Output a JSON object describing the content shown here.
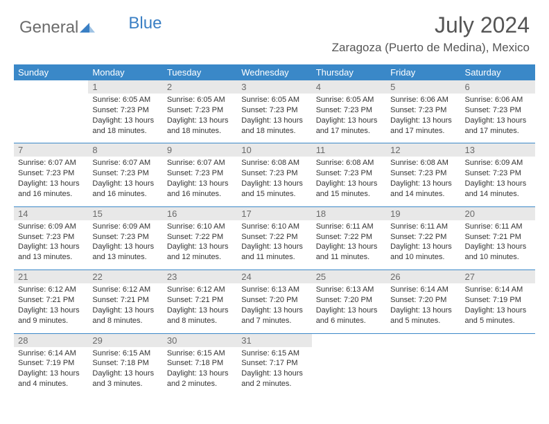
{
  "logo": {
    "text_part1": "General",
    "text_part2": "Blue"
  },
  "title": "July 2024",
  "location": "Zaragoza (Puerto de Medina), Mexico",
  "colors": {
    "header_bg": "#3a88c8",
    "header_text": "#ffffff",
    "daynum_bg": "#e8e8e8",
    "daynum_text": "#6a6a6a",
    "body_text": "#333333",
    "divider": "#3a88c8"
  },
  "day_headers": [
    "Sunday",
    "Monday",
    "Tuesday",
    "Wednesday",
    "Thursday",
    "Friday",
    "Saturday"
  ],
  "weeks": [
    {
      "nums": [
        "",
        "1",
        "2",
        "3",
        "4",
        "5",
        "6"
      ],
      "cells": [
        null,
        {
          "sunrise": "Sunrise: 6:05 AM",
          "sunset": "Sunset: 7:23 PM",
          "day1": "Daylight: 13 hours",
          "day2": "and 18 minutes."
        },
        {
          "sunrise": "Sunrise: 6:05 AM",
          "sunset": "Sunset: 7:23 PM",
          "day1": "Daylight: 13 hours",
          "day2": "and 18 minutes."
        },
        {
          "sunrise": "Sunrise: 6:05 AM",
          "sunset": "Sunset: 7:23 PM",
          "day1": "Daylight: 13 hours",
          "day2": "and 18 minutes."
        },
        {
          "sunrise": "Sunrise: 6:05 AM",
          "sunset": "Sunset: 7:23 PM",
          "day1": "Daylight: 13 hours",
          "day2": "and 17 minutes."
        },
        {
          "sunrise": "Sunrise: 6:06 AM",
          "sunset": "Sunset: 7:23 PM",
          "day1": "Daylight: 13 hours",
          "day2": "and 17 minutes."
        },
        {
          "sunrise": "Sunrise: 6:06 AM",
          "sunset": "Sunset: 7:23 PM",
          "day1": "Daylight: 13 hours",
          "day2": "and 17 minutes."
        }
      ]
    },
    {
      "nums": [
        "7",
        "8",
        "9",
        "10",
        "11",
        "12",
        "13"
      ],
      "cells": [
        {
          "sunrise": "Sunrise: 6:07 AM",
          "sunset": "Sunset: 7:23 PM",
          "day1": "Daylight: 13 hours",
          "day2": "and 16 minutes."
        },
        {
          "sunrise": "Sunrise: 6:07 AM",
          "sunset": "Sunset: 7:23 PM",
          "day1": "Daylight: 13 hours",
          "day2": "and 16 minutes."
        },
        {
          "sunrise": "Sunrise: 6:07 AM",
          "sunset": "Sunset: 7:23 PM",
          "day1": "Daylight: 13 hours",
          "day2": "and 16 minutes."
        },
        {
          "sunrise": "Sunrise: 6:08 AM",
          "sunset": "Sunset: 7:23 PM",
          "day1": "Daylight: 13 hours",
          "day2": "and 15 minutes."
        },
        {
          "sunrise": "Sunrise: 6:08 AM",
          "sunset": "Sunset: 7:23 PM",
          "day1": "Daylight: 13 hours",
          "day2": "and 15 minutes."
        },
        {
          "sunrise": "Sunrise: 6:08 AM",
          "sunset": "Sunset: 7:23 PM",
          "day1": "Daylight: 13 hours",
          "day2": "and 14 minutes."
        },
        {
          "sunrise": "Sunrise: 6:09 AM",
          "sunset": "Sunset: 7:23 PM",
          "day1": "Daylight: 13 hours",
          "day2": "and 14 minutes."
        }
      ]
    },
    {
      "nums": [
        "14",
        "15",
        "16",
        "17",
        "18",
        "19",
        "20"
      ],
      "cells": [
        {
          "sunrise": "Sunrise: 6:09 AM",
          "sunset": "Sunset: 7:23 PM",
          "day1": "Daylight: 13 hours",
          "day2": "and 13 minutes."
        },
        {
          "sunrise": "Sunrise: 6:09 AM",
          "sunset": "Sunset: 7:23 PM",
          "day1": "Daylight: 13 hours",
          "day2": "and 13 minutes."
        },
        {
          "sunrise": "Sunrise: 6:10 AM",
          "sunset": "Sunset: 7:22 PM",
          "day1": "Daylight: 13 hours",
          "day2": "and 12 minutes."
        },
        {
          "sunrise": "Sunrise: 6:10 AM",
          "sunset": "Sunset: 7:22 PM",
          "day1": "Daylight: 13 hours",
          "day2": "and 11 minutes."
        },
        {
          "sunrise": "Sunrise: 6:11 AM",
          "sunset": "Sunset: 7:22 PM",
          "day1": "Daylight: 13 hours",
          "day2": "and 11 minutes."
        },
        {
          "sunrise": "Sunrise: 6:11 AM",
          "sunset": "Sunset: 7:22 PM",
          "day1": "Daylight: 13 hours",
          "day2": "and 10 minutes."
        },
        {
          "sunrise": "Sunrise: 6:11 AM",
          "sunset": "Sunset: 7:21 PM",
          "day1": "Daylight: 13 hours",
          "day2": "and 10 minutes."
        }
      ]
    },
    {
      "nums": [
        "21",
        "22",
        "23",
        "24",
        "25",
        "26",
        "27"
      ],
      "cells": [
        {
          "sunrise": "Sunrise: 6:12 AM",
          "sunset": "Sunset: 7:21 PM",
          "day1": "Daylight: 13 hours",
          "day2": "and 9 minutes."
        },
        {
          "sunrise": "Sunrise: 6:12 AM",
          "sunset": "Sunset: 7:21 PM",
          "day1": "Daylight: 13 hours",
          "day2": "and 8 minutes."
        },
        {
          "sunrise": "Sunrise: 6:12 AM",
          "sunset": "Sunset: 7:21 PM",
          "day1": "Daylight: 13 hours",
          "day2": "and 8 minutes."
        },
        {
          "sunrise": "Sunrise: 6:13 AM",
          "sunset": "Sunset: 7:20 PM",
          "day1": "Daylight: 13 hours",
          "day2": "and 7 minutes."
        },
        {
          "sunrise": "Sunrise: 6:13 AM",
          "sunset": "Sunset: 7:20 PM",
          "day1": "Daylight: 13 hours",
          "day2": "and 6 minutes."
        },
        {
          "sunrise": "Sunrise: 6:14 AM",
          "sunset": "Sunset: 7:20 PM",
          "day1": "Daylight: 13 hours",
          "day2": "and 5 minutes."
        },
        {
          "sunrise": "Sunrise: 6:14 AM",
          "sunset": "Sunset: 7:19 PM",
          "day1": "Daylight: 13 hours",
          "day2": "and 5 minutes."
        }
      ]
    },
    {
      "nums": [
        "28",
        "29",
        "30",
        "31",
        "",
        "",
        ""
      ],
      "cells": [
        {
          "sunrise": "Sunrise: 6:14 AM",
          "sunset": "Sunset: 7:19 PM",
          "day1": "Daylight: 13 hours",
          "day2": "and 4 minutes."
        },
        {
          "sunrise": "Sunrise: 6:15 AM",
          "sunset": "Sunset: 7:18 PM",
          "day1": "Daylight: 13 hours",
          "day2": "and 3 minutes."
        },
        {
          "sunrise": "Sunrise: 6:15 AM",
          "sunset": "Sunset: 7:18 PM",
          "day1": "Daylight: 13 hours",
          "day2": "and 2 minutes."
        },
        {
          "sunrise": "Sunrise: 6:15 AM",
          "sunset": "Sunset: 7:17 PM",
          "day1": "Daylight: 13 hours",
          "day2": "and 2 minutes."
        },
        null,
        null,
        null
      ]
    }
  ]
}
